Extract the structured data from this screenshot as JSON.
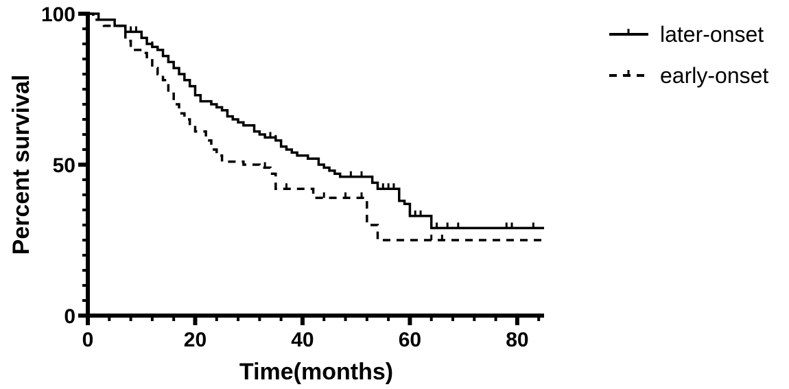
{
  "chart_data": {
    "type": "line",
    "subtype": "kaplan-meier step",
    "title": "",
    "xlabel": "Time(months)",
    "ylabel": "Percent survival",
    "xlim": [
      0,
      85
    ],
    "ylim": [
      0,
      100
    ],
    "x_ticks": [
      "0",
      "20",
      "40",
      "60",
      "80"
    ],
    "y_ticks": [
      "0",
      "50",
      "100"
    ],
    "legend_position": "top-right",
    "series": [
      {
        "name": "later-onset",
        "style": "solid",
        "color": "#000000",
        "steps": [
          [
            0,
            100
          ],
          [
            2,
            98
          ],
          [
            5,
            96
          ],
          [
            7,
            94
          ],
          [
            10,
            92
          ],
          [
            11,
            90
          ],
          [
            12,
            89
          ],
          [
            13,
            88
          ],
          [
            14,
            86
          ],
          [
            15,
            84
          ],
          [
            16,
            82
          ],
          [
            17,
            80
          ],
          [
            18,
            78
          ],
          [
            19,
            76
          ],
          [
            20,
            73
          ],
          [
            21,
            71
          ],
          [
            23,
            70
          ],
          [
            24,
            69
          ],
          [
            25,
            68
          ],
          [
            26,
            66
          ],
          [
            27,
            65
          ],
          [
            28,
            64
          ],
          [
            29,
            63
          ],
          [
            31,
            61
          ],
          [
            32,
            60
          ],
          [
            33,
            59
          ],
          [
            35,
            58
          ],
          [
            36,
            56
          ],
          [
            37,
            55
          ],
          [
            38,
            54
          ],
          [
            39,
            53
          ],
          [
            41,
            52
          ],
          [
            43,
            50
          ],
          [
            44,
            49
          ],
          [
            45,
            48
          ],
          [
            46,
            47
          ],
          [
            47,
            46
          ],
          [
            53,
            44
          ],
          [
            54,
            42
          ],
          [
            58,
            38
          ],
          [
            59,
            37
          ],
          [
            60,
            33
          ],
          [
            64,
            29
          ]
        ],
        "end_x": 85,
        "censored": [
          [
            8,
            94
          ],
          [
            9,
            94
          ],
          [
            10,
            92
          ],
          [
            12,
            89
          ],
          [
            26,
            66
          ],
          [
            34,
            59
          ],
          [
            35,
            58
          ],
          [
            49,
            46
          ],
          [
            51,
            46
          ],
          [
            55,
            42
          ],
          [
            56,
            42
          ],
          [
            57,
            42
          ],
          [
            60,
            33
          ],
          [
            61,
            33
          ],
          [
            62,
            33
          ],
          [
            65,
            29
          ],
          [
            67,
            29
          ],
          [
            69,
            29
          ],
          [
            78,
            29
          ],
          [
            79,
            29
          ],
          [
            83,
            29
          ]
        ]
      },
      {
        "name": "early-onset",
        "style": "dashed",
        "color": "#000000",
        "steps": [
          [
            0,
            100
          ],
          [
            1,
            98
          ],
          [
            3,
            96
          ],
          [
            7,
            91
          ],
          [
            8,
            88
          ],
          [
            10,
            87
          ],
          [
            11,
            85
          ],
          [
            12,
            82
          ],
          [
            13,
            80
          ],
          [
            14,
            78
          ],
          [
            15,
            74
          ],
          [
            16,
            70
          ],
          [
            17,
            67
          ],
          [
            18,
            65
          ],
          [
            19,
            63
          ],
          [
            20,
            61
          ],
          [
            22,
            58
          ],
          [
            23,
            55
          ],
          [
            24,
            53
          ],
          [
            25,
            51
          ],
          [
            29,
            50
          ],
          [
            32,
            49
          ],
          [
            34,
            47
          ],
          [
            35,
            42
          ],
          [
            42,
            39
          ],
          [
            52,
            30
          ],
          [
            54,
            25
          ]
        ],
        "end_x": 85,
        "censored": [
          [
            33,
            49
          ],
          [
            37,
            42
          ],
          [
            44,
            39
          ],
          [
            48,
            39
          ],
          [
            51,
            39
          ],
          [
            64,
            25
          ],
          [
            66,
            25
          ]
        ]
      }
    ]
  }
}
